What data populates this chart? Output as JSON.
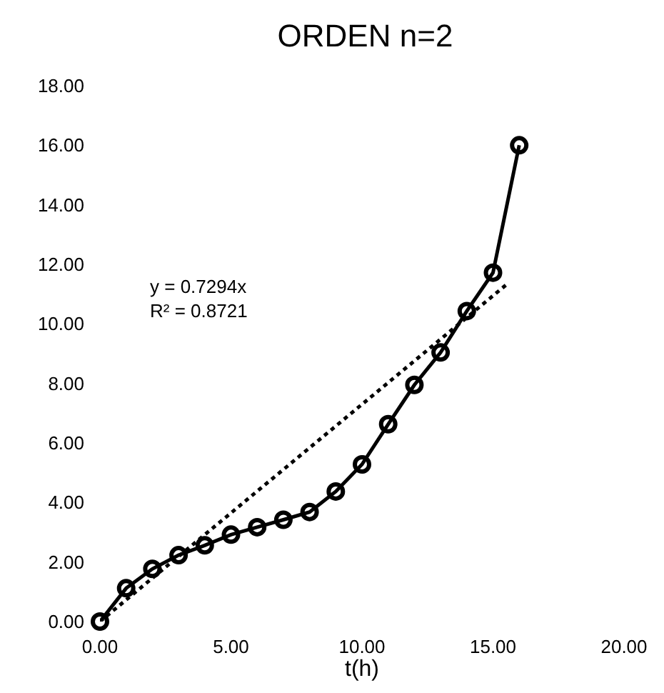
{
  "chart_data": {
    "type": "line",
    "title": "ORDEN n=2",
    "xlabel": "t(h)",
    "x": [
      0,
      1,
      2,
      3,
      4,
      5,
      6,
      7,
      8,
      9,
      10,
      11,
      12,
      13,
      14,
      15,
      16
    ],
    "series": [
      {
        "color": "#000000",
        "values": [
          0,
          1.12,
          1.77,
          2.23,
          2.56,
          2.92,
          3.17,
          3.42,
          3.68,
          4.37,
          5.28,
          6.63,
          7.95,
          9.04,
          10.43,
          11.72,
          16.0
        ],
        "marker": "circle",
        "line_style": "solid"
      },
      {
        "type": "line",
        "color": "#000000",
        "x": [
          0,
          15.5
        ],
        "values": [
          0,
          11.31
        ],
        "marker": "none",
        "line_style": "dotted"
      }
    ],
    "annotations": [
      "y = 0.7294x\nR² = 0.8721"
    ],
    "xlim": [
      0,
      20
    ],
    "xticks": [
      {
        "value": 0,
        "label": "0.00"
      },
      {
        "value": 5,
        "label": "5.00"
      },
      {
        "value": 10,
        "label": "10.00"
      },
      {
        "value": 15,
        "label": "15.00"
      },
      {
        "value": 20,
        "label": "20.00"
      }
    ],
    "ylim": [
      0,
      18
    ],
    "yticks": [
      {
        "value": 0,
        "label": "0.00"
      },
      {
        "value": 2,
        "label": "2.00"
      },
      {
        "value": 4,
        "label": "4.00"
      },
      {
        "value": 6,
        "label": "6.00"
      },
      {
        "value": 8,
        "label": "8.00"
      },
      {
        "value": 10,
        "label": "10.00"
      },
      {
        "value": 12,
        "label": "12.00"
      },
      {
        "value": 14,
        "label": "14.00"
      },
      {
        "value": 16,
        "label": "16.00"
      },
      {
        "value": 18,
        "label": "18.00"
      }
    ]
  }
}
